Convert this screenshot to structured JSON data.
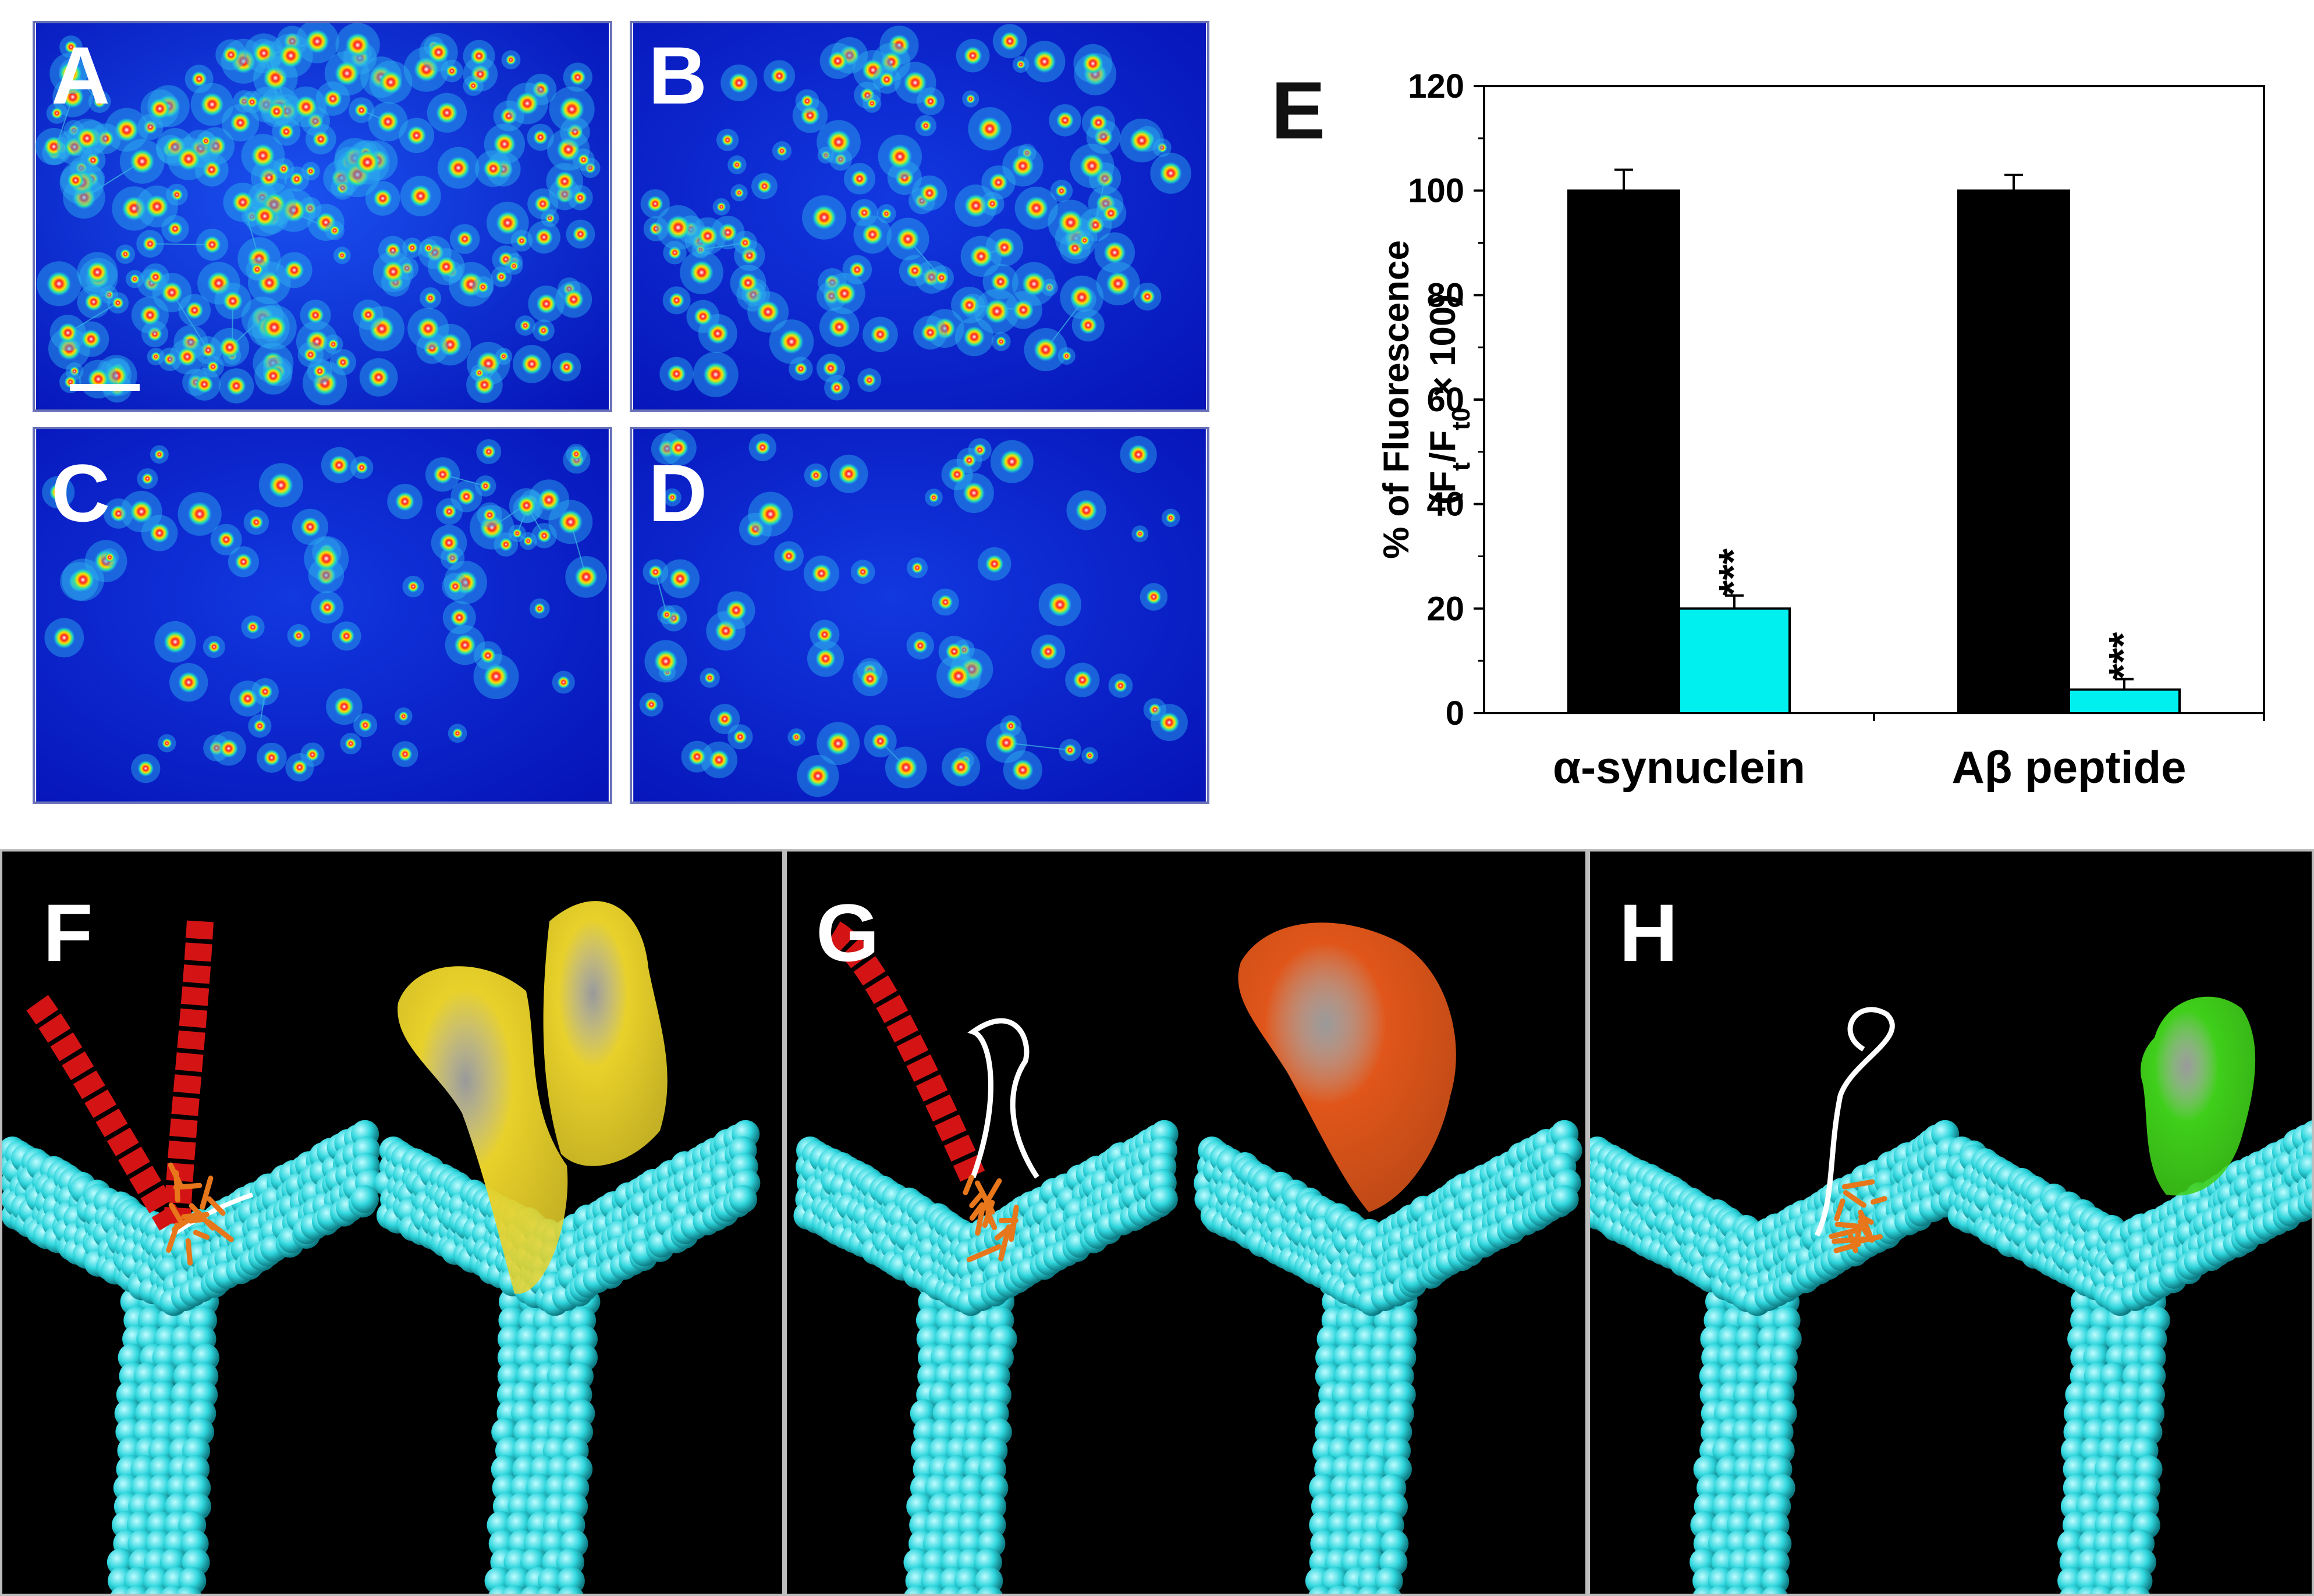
{
  "panels": {
    "micro": [
      {
        "label": "A",
        "density": 1.0
      },
      {
        "label": "B",
        "density": 0.55
      },
      {
        "label": "C",
        "density": 0.35
      },
      {
        "label": "D",
        "density": 0.3
      }
    ],
    "chart_label": "E",
    "structures": [
      {
        "label": "F",
        "surface_color": "#e8d12a"
      },
      {
        "label": "G",
        "surface_color": "#e0561a"
      },
      {
        "label": "H",
        "surface_color": "#3fcf1a"
      }
    ]
  },
  "colors": {
    "micro_bg": "#0a22d8",
    "control_bar": "#000000",
    "treated_bar": "#00f0f0",
    "sphere": "#2fd6dd",
    "helix": "#d41414",
    "ligand": "#e8761a"
  },
  "chart_data": {
    "type": "bar",
    "categories": [
      "α-synuclein",
      "Aβ peptide"
    ],
    "series": [
      {
        "values": [
          100,
          100
        ],
        "errors": [
          4,
          3
        ]
      },
      {
        "values": [
          20,
          4.5
        ],
        "errors": [
          2.5,
          2
        ]
      }
    ],
    "significance": [
      "***",
      "***"
    ],
    "ylabel_line1": "% of Fluorescence",
    "ylabel_line2_parts": [
      "(F",
      "t",
      "/F",
      "t0",
      " × 100)"
    ],
    "ylim": [
      0,
      120
    ],
    "yticks": [
      "0",
      "20",
      "40",
      "60",
      "80",
      "100",
      "120"
    ]
  }
}
